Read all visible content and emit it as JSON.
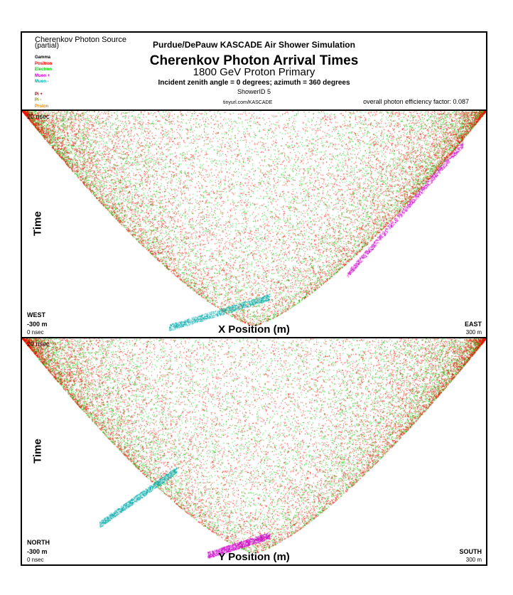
{
  "header": {
    "source_title": "Cherenkov Photon Source",
    "source_subtitle": "(partial)",
    "simulation": "Purdue/DePauw KASCADE Air Shower Simulation",
    "main_title": "Cherenkov Photon Arrival Times",
    "primary": "1800 GeV Proton Primary",
    "incident": "Incident zenith angle =  0 degrees;  azimuth =  360 degrees",
    "shower_id": "ShowerID 5",
    "url": "tinyurl.com/KASCADE",
    "efficiency": "overall photon efficiency factor: 0.087"
  },
  "legend": [
    {
      "label": "Gamma",
      "color": "#000000"
    },
    {
      "label": "Positron",
      "color": "#ff0000"
    },
    {
      "label": "Electron",
      "color": "#00cc00"
    },
    {
      "label": "Muon +",
      "color": "#cc00cc"
    },
    {
      "label": "Muon -",
      "color": "#00aaaa"
    },
    {
      "label": "",
      "color": "#e6e600"
    },
    {
      "label": "Pi +",
      "color": "#8b0000"
    },
    {
      "label": "Pi -",
      "color": "#7a9a00"
    },
    {
      "label": "Proton",
      "color": "#ff8800"
    }
  ],
  "chart_data": [
    {
      "type": "scatter",
      "title": "X Position (m)",
      "xlabel": "X Position (m)",
      "ylabel": "Time",
      "xlim": [
        -300,
        300
      ],
      "ylim": [
        0,
        20
      ],
      "x_unit": "m",
      "y_unit": "nsec",
      "left_direction": "WEST",
      "right_direction": "EAST",
      "labels": {
        "y_top": "20 nsec",
        "y_bottom": "0 nsec",
        "x_left": "-300 m",
        "x_right": "300 m",
        "dir_left": "WEST",
        "dir_right": "EAST",
        "axis": "X Position (m)",
        "time": "Time"
      },
      "series": [
        {
          "name": "Electron",
          "color": "#00cc00",
          "shape": "cone",
          "apex_x": 0,
          "apex_t": 0.4,
          "edge_t_at_300m": 20
        },
        {
          "name": "Positron",
          "color": "#ff0000",
          "shape": "cone",
          "apex_x": 0,
          "apex_t": 0.4,
          "edge_t_at_300m": 20
        },
        {
          "name": "Muon +",
          "color": "#cc00cc",
          "shape": "rim",
          "x_range": [
            120,
            270
          ],
          "t_range": [
            5,
            17
          ]
        },
        {
          "name": "Muon -",
          "color": "#00aaaa",
          "shape": "rim",
          "x_range": [
            -110,
            20
          ],
          "t_range": [
            0.2,
            3
          ]
        }
      ]
    },
    {
      "type": "scatter",
      "title": "Y Position (m)",
      "xlabel": "Y Position (m)",
      "ylabel": "Time",
      "xlim": [
        -300,
        300
      ],
      "ylim": [
        0,
        20
      ],
      "x_unit": "m",
      "y_unit": "nsec",
      "left_direction": "NORTH",
      "right_direction": "SOUTH",
      "labels": {
        "y_top": "20 nsec",
        "y_bottom": "0 nsec",
        "x_left": "-300 m",
        "x_right": "300 m",
        "dir_left": "NORTH",
        "dir_right": "SOUTH",
        "axis": "Y Position (m)",
        "time": "Time"
      },
      "series": [
        {
          "name": "Electron",
          "color": "#00cc00",
          "shape": "cone",
          "apex_x": 0,
          "apex_t": 0.4,
          "edge_t_at_300m": 20
        },
        {
          "name": "Positron",
          "color": "#ff0000",
          "shape": "cone",
          "apex_x": 0,
          "apex_t": 0.4,
          "edge_t_at_300m": 20
        },
        {
          "name": "Muon +",
          "color": "#cc00cc",
          "shape": "rim",
          "x_range": [
            -60,
            20
          ],
          "t_range": [
            0.2,
            2
          ]
        },
        {
          "name": "Muon -",
          "color": "#00aaaa",
          "shape": "rim",
          "x_range": [
            -200,
            -100
          ],
          "t_range": [
            3,
            8
          ]
        }
      ]
    }
  ]
}
